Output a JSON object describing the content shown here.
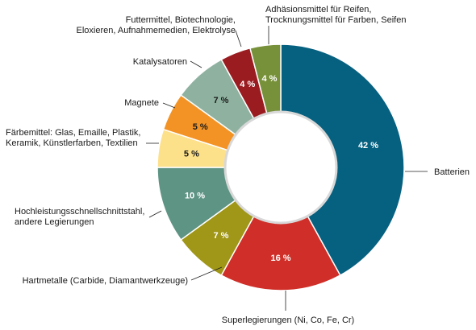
{
  "chart_data": {
    "type": "pie",
    "style": "donut",
    "categories": [
      "Batterien",
      "Superlegierungen (Ni, Co, Fe, Cr)",
      "Hartmetalle (Carbide, Diamantwerkzeuge)",
      "Hochleistungsschnellschnittstahl, andere Legierungen",
      "Färbemittel: Glas, Emaille, Plastik, Keramik, Künstlerfarben, Textilien",
      "Magnete",
      "Katalysatoren",
      "Futtermittel, Biotechnologie, Eloxieren, Aufnahmemedien, Elektrolyse",
      "Adhäsionsmittel für Reifen, Trocknungsmittel für Farben, Seifen"
    ],
    "values": [
      42,
      16,
      7,
      10,
      5,
      5,
      7,
      4,
      4
    ],
    "value_labels": [
      "42 %",
      "16 %",
      "7 %",
      "10 %",
      "5 %",
      "5 %",
      "7 %",
      "4 %",
      "4 %"
    ],
    "colors": [
      "#06607f",
      "#cf2f28",
      "#a09617",
      "#5e9484",
      "#fde08a",
      "#f39325",
      "#8fb2a0",
      "#9a1c21",
      "#77913a"
    ],
    "label_colors": [
      "#ffffff",
      "#ffffff",
      "#ffffff",
      "#ffffff",
      "#1a1a1a",
      "#1a1a1a",
      "#1a1a1a",
      "#ffffff",
      "#ffffff"
    ],
    "legend_lines": [
      [
        "Batterien"
      ],
      [
        "Superlegierungen (Ni, Co, Fe, Cr)"
      ],
      [
        "Hartmetalle (Carbide, Diamantwerkzeuge)"
      ],
      [
        "Hochleistungsschnellschnittstahl,",
        "andere Legierungen"
      ],
      [
        "Färbemittel: Glas, Emaille, Plastik,",
        "Keramik, Künstlerfarben, Textilien"
      ],
      [
        "Magnete"
      ],
      [
        "Katalysatoren"
      ],
      [
        "Futtermittel, Biotechnologie,",
        "Eloxieren, Aufnahmemedien, Elektrolyse"
      ],
      [
        "Adhäsionsmittel für Reifen,",
        "Trocknungsmittel für Farben, Seifen"
      ]
    ],
    "title": "",
    "legend": "none (labels with leader lines)"
  }
}
